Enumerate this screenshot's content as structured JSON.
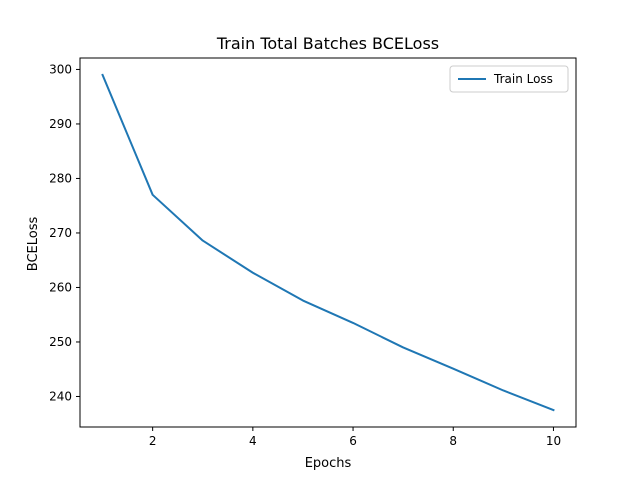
{
  "chart_data": {
    "type": "line",
    "title": "Train Total Batches BCELoss",
    "xlabel": "Epochs",
    "ylabel": "BCELoss",
    "xlim": [
      0.55,
      10.45
    ],
    "ylim": [
      234.4,
      302.1
    ],
    "xticks": [
      2,
      4,
      6,
      8,
      10
    ],
    "yticks": [
      240,
      250,
      260,
      270,
      280,
      290,
      300
    ],
    "grid": false,
    "legend_position": "top-right",
    "colors": {
      "series": "#1f77b4"
    },
    "series": [
      {
        "name": "Train Loss",
        "x": [
          1,
          2,
          3,
          4,
          5,
          6,
          7,
          8,
          9,
          10
        ],
        "y": [
          299.0,
          277.0,
          268.6,
          262.7,
          257.6,
          253.5,
          249.0,
          245.1,
          241.1,
          237.5
        ]
      }
    ]
  }
}
